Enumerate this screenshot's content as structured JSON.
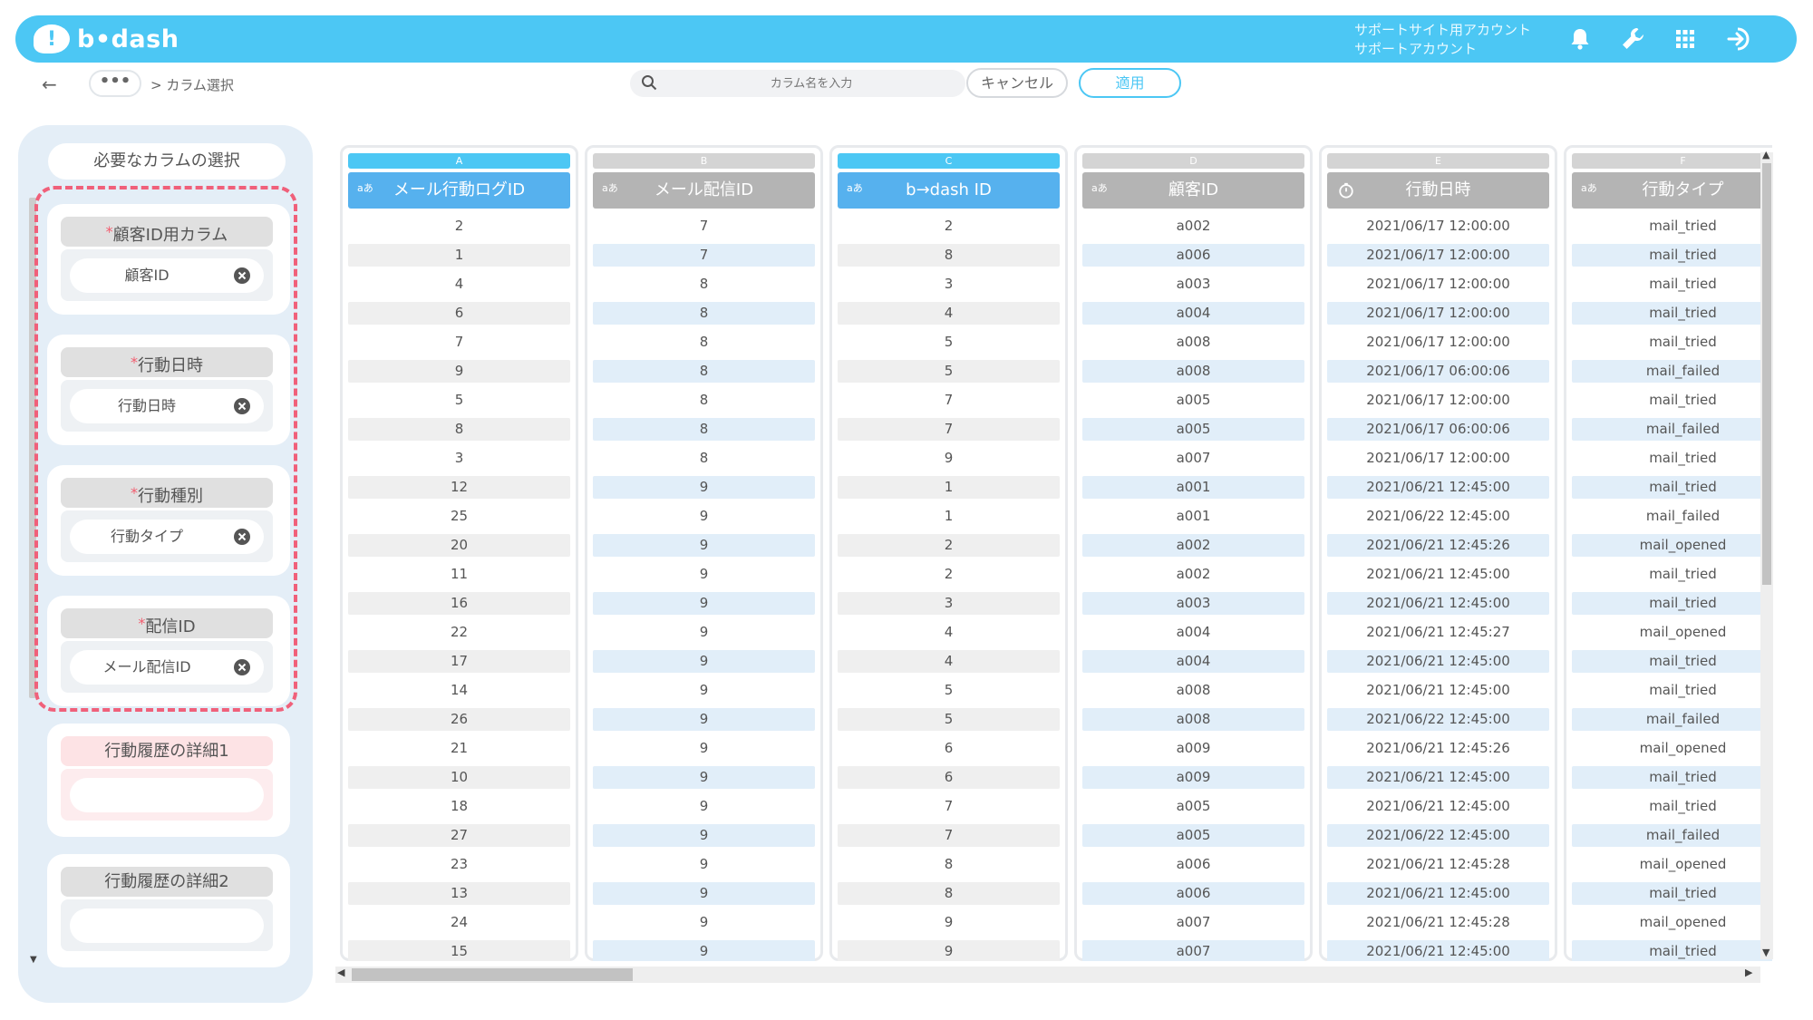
{
  "app": {
    "logo_text": "b•dash",
    "logo_mark": "!"
  },
  "header": {
    "account_line1": "サポートサイト用アカウント",
    "account_line2": "サポートアカウント",
    "icons": [
      "bell-icon",
      "wrench-icon",
      "grid-icon",
      "logout-icon"
    ]
  },
  "nav": {
    "back": "←",
    "breadcrumb_more": "•••",
    "breadcrumb_current": "> カラム選択",
    "search_placeholder": "カラム名を入力",
    "cancel_label": "キャンセル",
    "apply_label": "適用"
  },
  "left": {
    "title": "必要なカラムの選択",
    "required_mark": "*",
    "required_cards": [
      {
        "heading": "顧客ID用カラム",
        "value": "顧客ID"
      },
      {
        "heading": "行動日時",
        "value": "行動日時"
      },
      {
        "heading": "行動種別",
        "value": "行動タイプ"
      },
      {
        "heading": "配信ID",
        "value": "メール配信ID"
      }
    ],
    "optional_cards": [
      {
        "heading": "行動履歴の詳細1",
        "value": ""
      },
      {
        "heading": "行動履歴の詳細2",
        "value": ""
      }
    ]
  },
  "colors": {
    "brand": "#4cc7f4",
    "selected_header": "#56b1ee",
    "selected_letter": "#4cc7f4",
    "unselected_header": "#b4b4b4",
    "unselected_letter": "#d4d4d4",
    "stripe_blue": "#e1eef9",
    "stripe_gray": "#efefef",
    "required_border": "#f0607a",
    "optional_pink": "#fde3e5"
  },
  "table": {
    "columns": [
      {
        "letter": "A",
        "name": "メール行動ログID",
        "type": "aあ",
        "selected": true,
        "values": [
          "2",
          "1",
          "4",
          "6",
          "7",
          "9",
          "5",
          "8",
          "3",
          "12",
          "25",
          "20",
          "11",
          "16",
          "22",
          "17",
          "14",
          "26",
          "21",
          "10",
          "18",
          "27",
          "23",
          "13",
          "24",
          "15"
        ]
      },
      {
        "letter": "B",
        "name": "メール配信ID",
        "type": "aあ",
        "selected": false,
        "values": [
          "7",
          "7",
          "8",
          "8",
          "8",
          "8",
          "8",
          "8",
          "8",
          "9",
          "9",
          "9",
          "9",
          "9",
          "9",
          "9",
          "9",
          "9",
          "9",
          "9",
          "9",
          "9",
          "9",
          "9",
          "9",
          "9"
        ]
      },
      {
        "letter": "C",
        "name": "b→dash ID",
        "type": "aあ",
        "selected": true,
        "values": [
          "2",
          "8",
          "3",
          "4",
          "5",
          "5",
          "7",
          "7",
          "9",
          "1",
          "1",
          "2",
          "2",
          "3",
          "4",
          "4",
          "5",
          "5",
          "6",
          "6",
          "7",
          "7",
          "8",
          "8",
          "9",
          "9"
        ]
      },
      {
        "letter": "D",
        "name": "顧客ID",
        "type": "aあ",
        "selected": false,
        "values": [
          "a002",
          "a006",
          "a003",
          "a004",
          "a008",
          "a008",
          "a005",
          "a005",
          "a007",
          "a001",
          "a001",
          "a002",
          "a002",
          "a003",
          "a004",
          "a004",
          "a008",
          "a008",
          "a009",
          "a009",
          "a005",
          "a005",
          "a006",
          "a006",
          "a007",
          "a007"
        ]
      },
      {
        "letter": "E",
        "name": "行動日時",
        "type": "clock",
        "selected": false,
        "values": [
          "2021/06/17 12:00:00",
          "2021/06/17 12:00:00",
          "2021/06/17 12:00:00",
          "2021/06/17 12:00:00",
          "2021/06/17 12:00:00",
          "2021/06/17 06:00:06",
          "2021/06/17 12:00:00",
          "2021/06/17 06:00:06",
          "2021/06/17 12:00:00",
          "2021/06/21 12:45:00",
          "2021/06/22 12:45:00",
          "2021/06/21 12:45:26",
          "2021/06/21 12:45:00",
          "2021/06/21 12:45:00",
          "2021/06/21 12:45:27",
          "2021/06/21 12:45:00",
          "2021/06/21 12:45:00",
          "2021/06/22 12:45:00",
          "2021/06/21 12:45:26",
          "2021/06/21 12:45:00",
          "2021/06/21 12:45:00",
          "2021/06/22 12:45:00",
          "2021/06/21 12:45:28",
          "2021/06/21 12:45:00",
          "2021/06/21 12:45:28",
          "2021/06/21 12:45:00"
        ]
      },
      {
        "letter": "F",
        "name": "行動タイプ",
        "type": "aあ",
        "selected": false,
        "values": [
          "mail_tried",
          "mail_tried",
          "mail_tried",
          "mail_tried",
          "mail_tried",
          "mail_failed",
          "mail_tried",
          "mail_failed",
          "mail_tried",
          "mail_tried",
          "mail_failed",
          "mail_opened",
          "mail_tried",
          "mail_tried",
          "mail_opened",
          "mail_tried",
          "mail_tried",
          "mail_failed",
          "mail_opened",
          "mail_tried",
          "mail_tried",
          "mail_failed",
          "mail_opened",
          "mail_tried",
          "mail_opened",
          "mail_tried"
        ]
      }
    ]
  }
}
